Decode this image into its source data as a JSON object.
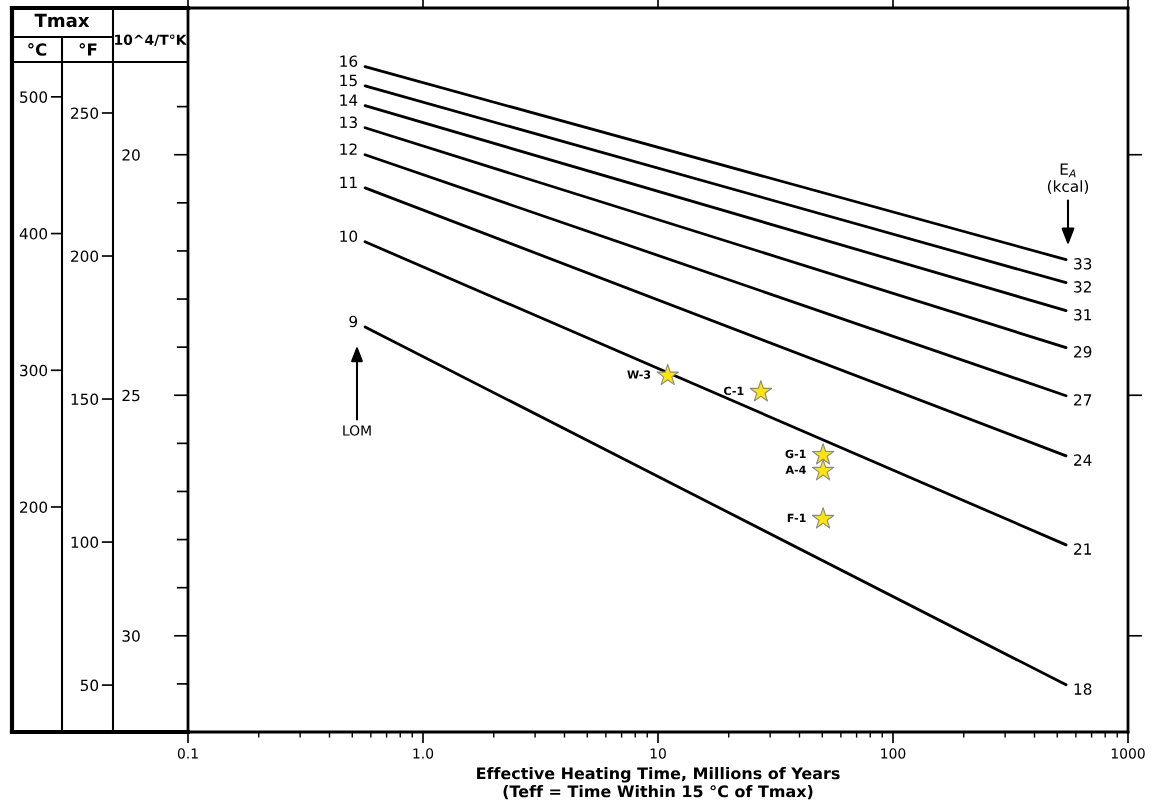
{
  "chart_data": {
    "type": "line",
    "xlabel": "Effective Heating Time, Millions of Years\n(Teff = Time Within 15 °C of Tmax)",
    "ylabel": "10^4/T°K",
    "y2label": "°C",
    "y3label": "°F",
    "log": "x",
    "grid": false,
    "legend": false,
    "line_style": "solid",
    "xlim": [
      0.1,
      1000
    ],
    "xticks": [
      0.1,
      {
        "value": 1,
        "label": "1.0"
      },
      10,
      100,
      1000
    ],
    "ylim": [
      32.0,
      16.95
    ],
    "yticks": [
      {
        "value": 19,
        "label": null
      },
      20,
      {
        "value": 21,
        "label": null
      },
      {
        "value": 22,
        "label": null
      },
      {
        "value": 23,
        "label": null
      },
      {
        "value": 24,
        "label": null
      },
      25,
      {
        "value": 26,
        "label": null
      },
      {
        "value": 27,
        "label": null
      },
      {
        "value": 28,
        "label": null
      },
      {
        "value": 29,
        "label": null
      },
      30,
      {
        "value": 31,
        "label": null
      }
    ],
    "y2lim": [
      35.4,
      565
    ],
    "y2ticks": [
      200,
      300,
      400,
      500
    ],
    "y3lim": [
      33.6,
      286.7
    ],
    "y3ticks": [
      50,
      100,
      150,
      200,
      250
    ],
    "series": [
      {
        "name": "16",
        "color": "#000000",
        "x": [
          0.567,
          545
        ],
        "values": [
          18.17,
          22.18
        ]
      },
      {
        "name": "15",
        "color": "#000000",
        "x": [
          0.567,
          545
        ],
        "values": [
          18.57,
          22.66
        ]
      },
      {
        "name": "14",
        "color": "#000000",
        "x": [
          0.567,
          545
        ],
        "values": [
          18.98,
          23.24
        ]
      },
      {
        "name": "13",
        "color": "#000000",
        "x": [
          0.567,
          545
        ],
        "values": [
          19.44,
          24.01
        ]
      },
      {
        "name": "12",
        "color": "#000000",
        "x": [
          0.567,
          545
        ],
        "values": [
          20.0,
          25.01
        ]
      },
      {
        "name": "11",
        "color": "#000000",
        "x": [
          0.567,
          545
        ],
        "values": [
          20.69,
          26.26
        ]
      },
      {
        "name": "10",
        "color": "#000000",
        "x": [
          0.567,
          545
        ],
        "values": [
          21.81,
          28.11
        ]
      },
      {
        "name": "9",
        "color": "#000000",
        "x": [
          0.567,
          545
        ],
        "values": [
          23.58,
          31.02
        ]
      },
      {
        "type": "scatter",
        "marker": "star",
        "color": "#ffe600",
        "x": [
          11.0,
          27.4,
          50.4,
          50.4,
          50.4
        ],
        "values": [
          24.59,
          24.93,
          26.24,
          26.57,
          27.57
        ]
      }
    ],
    "annotations": [
      "Tmax",
      "LOM",
      "E$_{A}$\n(kcal)",
      {
        "text": "33",
        "x": 545,
        "y": 22.18
      },
      {
        "text": "32",
        "x": 545,
        "y": 22.66
      },
      {
        "text": "31",
        "x": 545,
        "y": 23.24
      },
      {
        "text": "29",
        "x": 545,
        "y": 24.01
      },
      {
        "text": "27",
        "x": 545,
        "y": 25.01
      },
      {
        "text": "24",
        "x": 545,
        "y": 26.26
      },
      {
        "text": "21",
        "x": 545,
        "y": 28.11
      },
      {
        "text": "18",
        "x": 545,
        "y": 31.02
      },
      {
        "text": "W-3",
        "x": 11.0,
        "y": 24.59
      },
      {
        "text": "C-1",
        "x": 27.4,
        "y": 24.93
      },
      {
        "text": "G-1",
        "x": 50.4,
        "y": 26.24
      },
      {
        "text": "A-4",
        "x": 50.4,
        "y": 26.57
      },
      {
        "text": "F-1",
        "x": 50.4,
        "y": 27.57
      }
    ]
  }
}
